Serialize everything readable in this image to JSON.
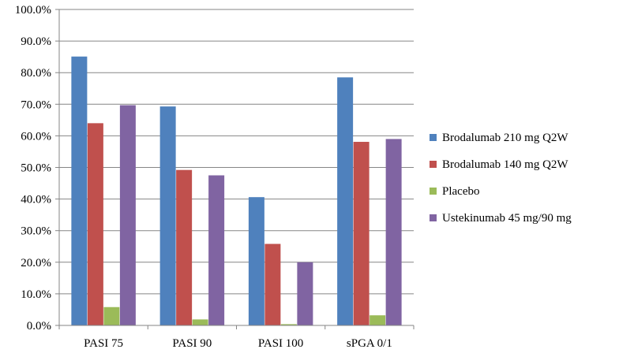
{
  "chart_data": {
    "type": "bar",
    "title": "",
    "xlabel": "",
    "ylabel": "",
    "ylim": [
      0,
      100
    ],
    "y_ticks": [
      "0.0%",
      "10.0%",
      "20.0%",
      "30.0%",
      "40.0%",
      "50.0%",
      "60.0%",
      "70.0%",
      "80.0%",
      "90.0%",
      "100.0%"
    ],
    "grid": true,
    "legend_position": "right",
    "categories": [
      "PASI 75",
      "PASI 90",
      "PASI 100",
      "sPGA 0/1"
    ],
    "series": [
      {
        "name": "Brodalumab 210 mg Q2W",
        "color": "#4f81bd",
        "values": [
          85.1,
          69.3,
          40.6,
          78.5
        ]
      },
      {
        "name": "Brodalumab 140 mg Q2W",
        "color": "#c0504d",
        "values": [
          64.0,
          49.2,
          25.8,
          58.1
        ]
      },
      {
        "name": "Placebo",
        "color": "#9bbb59",
        "values": [
          5.8,
          1.9,
          0.4,
          3.2
        ]
      },
      {
        "name": "Ustekinumab 45 mg/90 mg",
        "color": "#8064a2",
        "values": [
          69.7,
          47.5,
          20.0,
          59.0
        ]
      }
    ]
  }
}
